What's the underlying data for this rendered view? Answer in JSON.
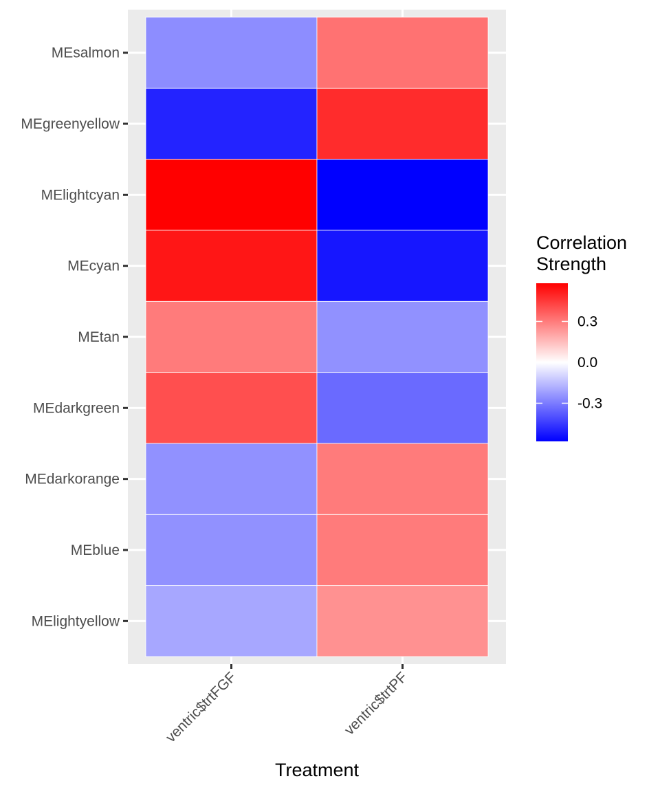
{
  "chart_data": {
    "type": "heatmap",
    "title": "",
    "xlabel": "Treatment",
    "ylabel": "",
    "x_categories": [
      "ventric$trtFGF",
      "ventric$trtPF"
    ],
    "y_categories": [
      "MEsalmon",
      "MEgreenyellow",
      "MElightcyan",
      "MEcyan",
      "MEtan",
      "MEdarkgreen",
      "MEdarkorange",
      "MEblue",
      "MElightyellow"
    ],
    "values": [
      [
        -0.26,
        0.32
      ],
      [
        -0.5,
        0.48
      ],
      [
        0.58,
        -0.58
      ],
      [
        0.53,
        -0.53
      ],
      [
        0.3,
        -0.25
      ],
      [
        0.4,
        -0.34
      ],
      [
        -0.25,
        0.3
      ],
      [
        -0.25,
        0.3
      ],
      [
        -0.2,
        0.25
      ]
    ],
    "legend": {
      "title_lines": [
        "Correlation",
        "Strength"
      ],
      "ticks": [
        0.3,
        0.0,
        -0.3
      ],
      "tick_labels": [
        "0.3",
        "0.0",
        "-0.3"
      ],
      "range": [
        -0.58,
        0.58
      ],
      "position": "right"
    },
    "colors": {
      "low": "#0000ff",
      "mid": "#ffffff",
      "high": "#ff0000",
      "panel_background": "#ebebeb",
      "grid": "#ffffff"
    }
  }
}
